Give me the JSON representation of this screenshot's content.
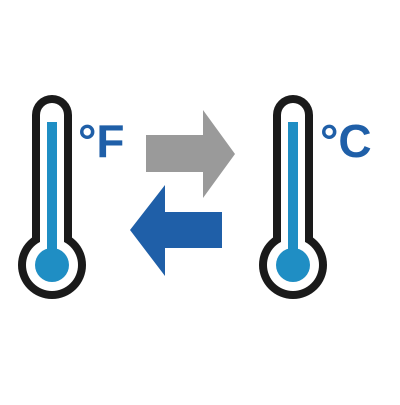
{
  "labels": {
    "fahrenheit": "°F",
    "celsius": "°C"
  },
  "icons": {
    "left_thermometer": "thermometer-icon",
    "right_thermometer": "thermometer-icon",
    "convert_right_arrow": "arrow-right-icon",
    "convert_left_arrow": "arrow-left-icon"
  },
  "colors": {
    "outline": "#1a1a1a",
    "glass": "#ffffff",
    "mercury": "#1f8ec4",
    "label_blue": "#1f5fa8",
    "arrow_gray": "#9a9a9a",
    "arrow_blue": "#1f5fa8",
    "background": "#ffffff"
  }
}
